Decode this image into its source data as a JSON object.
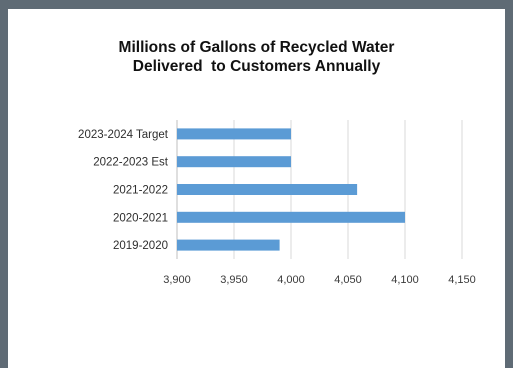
{
  "chart_data": {
    "type": "bar",
    "orientation": "horizontal",
    "title": [
      "Millions of Gallons of Recycled Water",
      "Delivered  to Customers Annually"
    ],
    "categories": [
      "2023-2024 Target",
      "2022-2023 Est",
      "2021-2022",
      "2020-2021",
      "2019-2020"
    ],
    "values": [
      4000,
      4000,
      4058,
      4100,
      3990
    ],
    "xlim": [
      3900,
      4150
    ],
    "xticks": [
      3900,
      3950,
      4000,
      4050,
      4100,
      4150
    ],
    "xtick_labels": [
      "3,900",
      "3,950",
      "4,000",
      "4,050",
      "4,100",
      "4,150"
    ],
    "grid": "vertical",
    "legend": "none",
    "bar_color": "#5b9bd5",
    "gridline_color": "#d9d9d9"
  }
}
